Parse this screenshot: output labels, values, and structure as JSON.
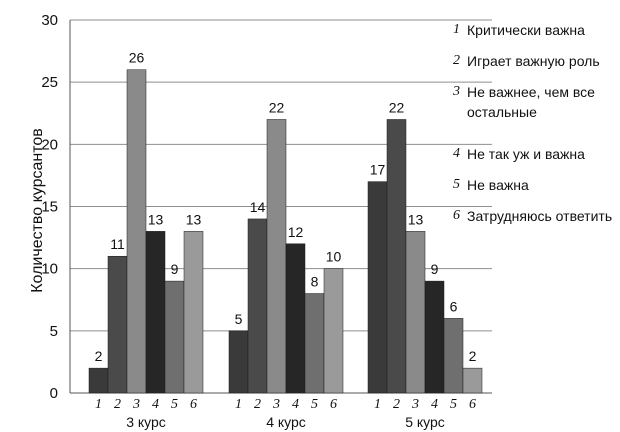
{
  "chart_data": {
    "type": "bar",
    "ylabel": "Количество курсантов",
    "ylim": [
      0,
      30
    ],
    "yticks": [
      "0",
      "5",
      "10",
      "15",
      "20",
      "25",
      "30"
    ],
    "grid": true,
    "legend_position": "right",
    "categories": [
      "3 курс",
      "4 курс",
      "5 курс"
    ],
    "bar_index_labels": [
      "1",
      "2",
      "3",
      "4",
      "5",
      "6"
    ],
    "series": [
      {
        "name": "Критически важна",
        "values": [
          2,
          5,
          17
        ],
        "color": "#3a3a3a"
      },
      {
        "name": "Играет важную роль",
        "values": [
          11,
          14,
          22
        ],
        "color": "#4a4a4a"
      },
      {
        "name": "Не важнее, чем все остальные",
        "values": [
          26,
          22,
          13
        ],
        "color": "#8a8a8a"
      },
      {
        "name": "Не так уж и важна",
        "values": [
          13,
          12,
          9
        ],
        "color": "#262626"
      },
      {
        "name": "Не важна",
        "values": [
          9,
          8,
          6
        ],
        "color": "#6f6f6f"
      },
      {
        "name": "Затрудняюсь ответить",
        "values": [
          13,
          10,
          2
        ],
        "color": "#9a9a9a"
      }
    ]
  },
  "legend": [
    {
      "num": "1",
      "text": "Критически важна"
    },
    {
      "num": "2",
      "text": "Играет важную роль"
    },
    {
      "num": "3",
      "text": "Не важнее, чем все остальные"
    },
    {
      "num": "4",
      "text": "Не так уж и важна"
    },
    {
      "num": "5",
      "text": "Не важна"
    },
    {
      "num": "6",
      "text": "Затрудняюсь ответить"
    }
  ]
}
